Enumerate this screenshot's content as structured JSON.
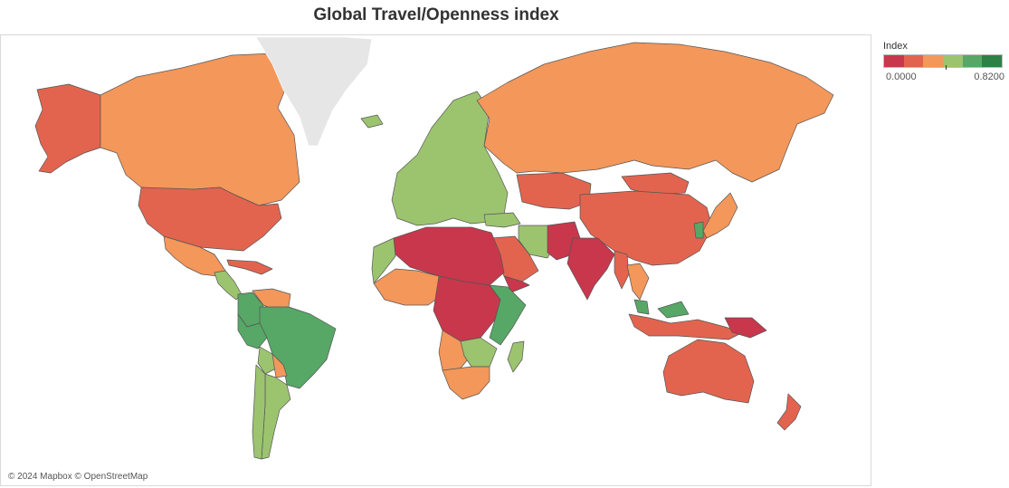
{
  "title": "Global Travel/Openness index",
  "legend": {
    "title": "Index",
    "min_label": "0.0000",
    "max_label": "0.8200",
    "min_value": 0.0,
    "max_value": 0.82,
    "colors": [
      "#c8374c",
      "#e2644f",
      "#f3975a",
      "#9cc46f",
      "#57a766",
      "#2d8147"
    ]
  },
  "attribution": "© 2024 Mapbox © OpenStreetMap",
  "map": {
    "land_no_data_color": "#e6e6e6",
    "border_color": "#555555",
    "regions": [
      {
        "name": "Alaska",
        "index": 0.18
      },
      {
        "name": "Canada",
        "index": 0.3
      },
      {
        "name": "Greenland",
        "index": null
      },
      {
        "name": "United States",
        "index": 0.16
      },
      {
        "name": "Mexico",
        "index": 0.3
      },
      {
        "name": "Central America",
        "index": 0.52
      },
      {
        "name": "Caribbean",
        "index": 0.16
      },
      {
        "name": "Colombia",
        "index": 0.62
      },
      {
        "name": "Venezuela",
        "index": 0.3
      },
      {
        "name": "Brazil",
        "index": 0.62
      },
      {
        "name": "Peru",
        "index": 0.62
      },
      {
        "name": "Bolivia",
        "index": 0.52
      },
      {
        "name": "Paraguay",
        "index": 0.3
      },
      {
        "name": "Argentina",
        "index": 0.5
      },
      {
        "name": "Chile",
        "index": 0.5
      },
      {
        "name": "Iceland",
        "index": 0.5
      },
      {
        "name": "Europe",
        "index": 0.5
      },
      {
        "name": "Russia",
        "index": 0.3
      },
      {
        "name": "Kazakhstan",
        "index": 0.16
      },
      {
        "name": "Mongolia",
        "index": 0.16
      },
      {
        "name": "China",
        "index": 0.16
      },
      {
        "name": "Japan",
        "index": 0.3
      },
      {
        "name": "South Korea",
        "index": 0.62
      },
      {
        "name": "Turkey",
        "index": 0.5
      },
      {
        "name": "Iran",
        "index": 0.5
      },
      {
        "name": "Saudi Arabia",
        "index": 0.16
      },
      {
        "name": "Yemen",
        "index": 0.05
      },
      {
        "name": "Pakistan",
        "index": 0.05
      },
      {
        "name": "India",
        "index": 0.05
      },
      {
        "name": "Myanmar",
        "index": 0.16
      },
      {
        "name": "Thailand",
        "index": 0.3
      },
      {
        "name": "Malaysia",
        "index": 0.62
      },
      {
        "name": "Indonesia",
        "index": 0.16
      },
      {
        "name": "Papua New Guinea",
        "index": 0.05
      },
      {
        "name": "Australia",
        "index": 0.16
      },
      {
        "name": "New Zealand",
        "index": 0.16
      },
      {
        "name": "North Africa",
        "index": 0.05
      },
      {
        "name": "Morocco",
        "index": 0.5
      },
      {
        "name": "West Africa",
        "index": 0.3
      },
      {
        "name": "Central Africa",
        "index": 0.05
      },
      {
        "name": "East Africa",
        "index": 0.62
      },
      {
        "name": "Angola",
        "index": 0.3
      },
      {
        "name": "Zambia",
        "index": 0.5
      },
      {
        "name": "Southern Africa",
        "index": 0.3
      },
      {
        "name": "Madagascar",
        "index": 0.5
      }
    ]
  }
}
